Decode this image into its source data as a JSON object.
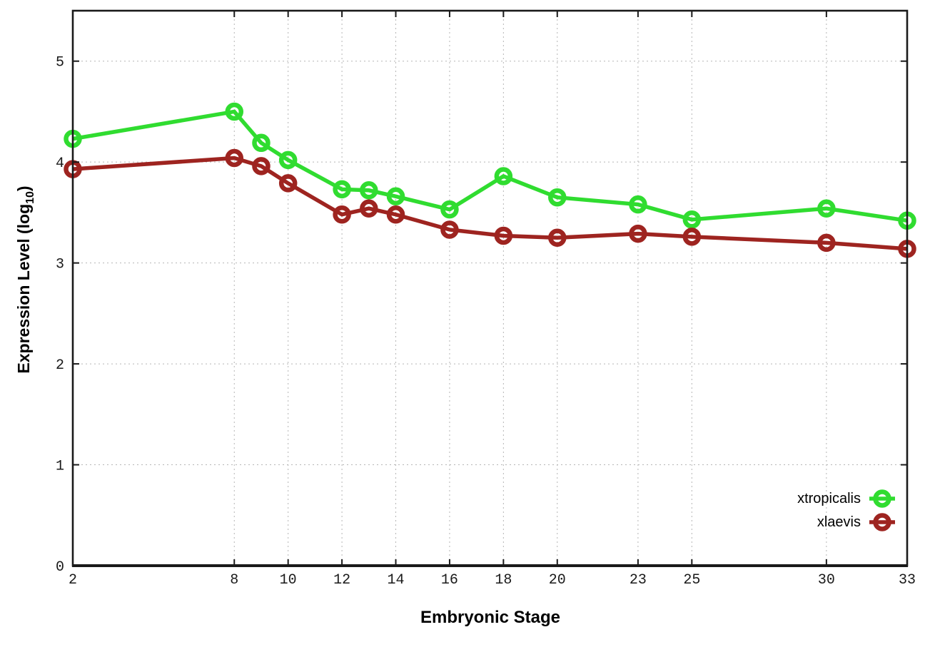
{
  "labels": {
    "xlabel": "Embryonic Stage",
    "ylabel_main": "Expression Level (log",
    "ylabel_sub": "10",
    "ylabel_close": ")"
  },
  "chart_data": {
    "type": "line",
    "title": "",
    "xlabel": "Embryonic Stage",
    "ylabel": "Expression Level (log10)",
    "x": [
      2,
      8,
      9,
      10,
      12,
      13,
      14,
      16,
      18,
      20,
      23,
      25,
      30,
      33
    ],
    "x_ticks": [
      2,
      8,
      10,
      12,
      14,
      16,
      18,
      20,
      23,
      25,
      30,
      33
    ],
    "x_tick_labels": [
      "2",
      "8",
      "10",
      "12",
      "14",
      "16",
      "18",
      "20",
      "23",
      "25",
      "30",
      "33"
    ],
    "y_ticks": [
      0,
      1,
      2,
      3,
      4,
      5
    ],
    "y_tick_labels": [
      "0",
      "1",
      "2",
      "3",
      "4",
      "5"
    ],
    "xlim": [
      2,
      33
    ],
    "ylim": [
      0,
      5.5
    ],
    "grid": true,
    "legend_position": "inside-right-lower",
    "series": [
      {
        "name": "xtropicalis",
        "color": "#30dc30",
        "values": [
          4.23,
          4.5,
          4.19,
          4.02,
          3.73,
          3.72,
          3.66,
          3.53,
          3.86,
          3.65,
          3.58,
          3.43,
          3.54,
          3.42
        ]
      },
      {
        "name": "xlaevis",
        "color": "#9e2420",
        "values": [
          3.93,
          4.04,
          3.96,
          3.79,
          3.48,
          3.54,
          3.48,
          3.33,
          3.27,
          3.25,
          3.29,
          3.26,
          3.2,
          3.14
        ]
      }
    ],
    "style": {
      "marker": "open-circle",
      "marker_radius": 9.5,
      "marker_stroke": 6.5,
      "line_width": 5.5,
      "grid_color": "#b5b5b5",
      "axis_color": "#1a1a1a",
      "background": "#ffffff"
    }
  }
}
